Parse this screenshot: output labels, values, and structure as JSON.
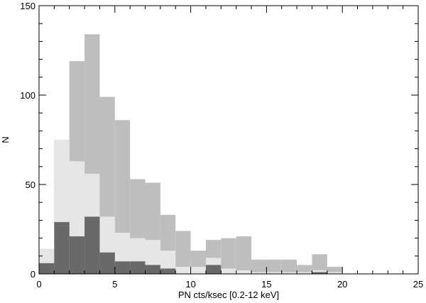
{
  "chart_data": {
    "type": "bar",
    "title": "",
    "xlabel": "PN cts/ksec [0.2-12 keV]",
    "ylabel": "N",
    "xlim": [
      0,
      25
    ],
    "ylim": [
      0,
      150
    ],
    "x_ticks": [
      0,
      5,
      10,
      15,
      20,
      25
    ],
    "y_ticks": [
      0,
      50,
      100,
      150
    ],
    "bin_width": 1,
    "bin_starts": [
      0,
      1,
      2,
      3,
      4,
      5,
      6,
      7,
      8,
      9,
      10,
      11,
      12,
      13,
      14,
      15,
      16,
      17,
      18,
      19
    ],
    "series": [
      {
        "color": "#bebebe",
        "values": [
          14,
          75,
          119,
          134,
          99,
          86,
          53,
          51,
          33,
          24,
          13,
          19,
          20,
          21,
          8,
          8,
          8,
          5,
          11,
          4
        ]
      },
      {
        "color": "#e6e6e6",
        "values": [
          14,
          75,
          63,
          56,
          32,
          23,
          20,
          19,
          13,
          4,
          4,
          9,
          3,
          2,
          1,
          1,
          1,
          1,
          2,
          1
        ]
      },
      {
        "color": "#696969",
        "values": [
          6,
          29,
          21,
          32,
          12,
          7,
          7,
          5,
          3,
          0,
          0,
          5,
          0,
          0,
          0,
          0,
          0,
          0,
          1,
          0
        ]
      }
    ],
    "grid": false,
    "legend": false
  }
}
